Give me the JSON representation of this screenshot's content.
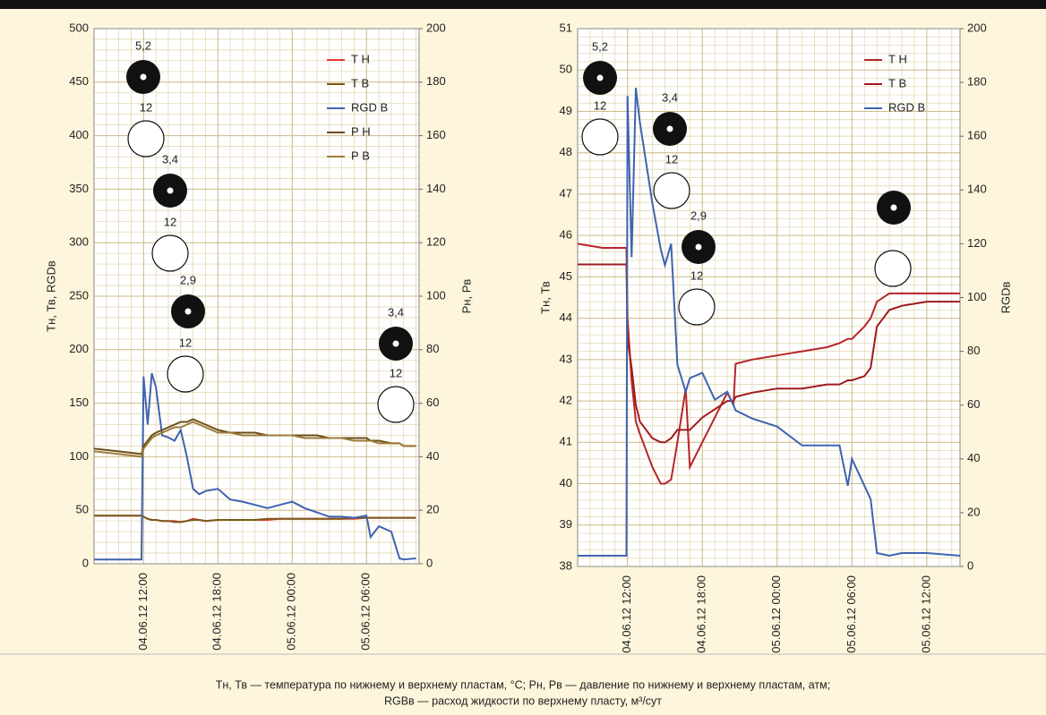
{
  "chart_data": [
    {
      "type": "line",
      "ylabel": "Тн, Тв, RGDв",
      "y2label": "Рн, Рв",
      "legend": "upper right",
      "xlim": [
        "2012-06-04T08:00",
        "2012-06-05T10:15"
      ],
      "xticks": [
        {
          "value": "2012-06-04T12:00",
          "label": "04.06.12 12:00"
        },
        {
          "value": "2012-06-04T18:00",
          "label": "04.06.12 18:00"
        },
        {
          "value": "2012-06-05T00:00",
          "label": "05.06.12 00:00"
        },
        {
          "value": "2012-06-05T06:00",
          "label": "05.06.12 06:00"
        }
      ],
      "ylim": [
        0,
        500
      ],
      "yticks": [
        0,
        50,
        100,
        150,
        200,
        250,
        300,
        350,
        400,
        450,
        500
      ],
      "y2lim": [
        0,
        200
      ],
      "y2ticks": [
        0,
        20,
        40,
        60,
        80,
        100,
        120,
        140,
        160,
        180,
        200
      ],
      "x": [
        "2012-06-04T08:00",
        "2012-06-04T10:00",
        "2012-06-04T11:50",
        "2012-06-04T12:00",
        "2012-06-04T12:20",
        "2012-06-04T12:40",
        "2012-06-04T13:00",
        "2012-06-04T13:30",
        "2012-06-04T14:00",
        "2012-06-04T14:30",
        "2012-06-04T15:00",
        "2012-06-04T15:30",
        "2012-06-04T16:00",
        "2012-06-04T16:30",
        "2012-06-04T17:00",
        "2012-06-04T18:00",
        "2012-06-04T19:00",
        "2012-06-04T20:00",
        "2012-06-04T21:00",
        "2012-06-04T22:00",
        "2012-06-04T23:00",
        "2012-06-05T00:00",
        "2012-06-05T01:00",
        "2012-06-05T02:00",
        "2012-06-05T03:00",
        "2012-06-05T04:00",
        "2012-06-05T05:00",
        "2012-06-05T06:00",
        "2012-06-05T06:20",
        "2012-06-05T07:00",
        "2012-06-05T08:00",
        "2012-06-05T08:40",
        "2012-06-05T09:00",
        "2012-06-05T10:00"
      ],
      "series": [
        {
          "name": "Т Н",
          "color": "#e8383d",
          "values": [
            45,
            45,
            45,
            44,
            42,
            41,
            41,
            40,
            40,
            40,
            39,
            40,
            42,
            41,
            40,
            41,
            41,
            41,
            41,
            41,
            42,
            42,
            42,
            42,
            42,
            42,
            42,
            43,
            43,
            43,
            43,
            43,
            43,
            43
          ]
        },
        {
          "name": "Т В",
          "color": "#7a5a1c",
          "values": [
            45,
            45,
            45,
            44,
            42,
            41,
            41,
            40,
            40,
            39,
            39,
            40,
            41,
            41,
            40,
            41,
            41,
            41,
            41,
            42,
            42,
            42,
            42,
            42,
            42,
            42,
            43,
            43,
            43,
            43,
            43,
            43,
            43,
            43
          ]
        },
        {
          "name": "RGD В",
          "color": "#3f63b0",
          "values": [
            4,
            4,
            4,
            175,
            130,
            178,
            165,
            120,
            118,
            115,
            125,
            100,
            70,
            65,
            68,
            70,
            60,
            58,
            55,
            52,
            55,
            58,
            52,
            48,
            44,
            44,
            43,
            45,
            25,
            35,
            30,
            5,
            4,
            5
          ]
        },
        {
          "name": "Р Н",
          "color": "#6b4e16",
          "axis": "y2",
          "values": [
            43,
            42,
            41,
            44,
            46,
            48,
            49,
            50,
            51,
            52,
            53,
            53,
            54,
            53,
            52,
            50,
            49,
            49,
            49,
            48,
            48,
            48,
            48,
            48,
            47,
            47,
            47,
            47,
            46,
            46,
            45,
            45,
            44,
            44
          ]
        },
        {
          "name": "Р В",
          "color": "#9c7b3a",
          "axis": "y2",
          "values": [
            42,
            41,
            40,
            43,
            45,
            47,
            48,
            49,
            50,
            51,
            51,
            52,
            53,
            52,
            51,
            49,
            49,
            48,
            48,
            48,
            48,
            48,
            47,
            47,
            47,
            47,
            46,
            46,
            46,
            45,
            45,
            45,
            44,
            44
          ]
        }
      ],
      "annotations": [
        "5,2",
        "12",
        "3,4",
        "12",
        "2,9",
        "12",
        "3,4",
        "12"
      ]
    },
    {
      "type": "line",
      "ylabel": "Тн, Тв",
      "y2label": "RGDв",
      "legend": "upper right",
      "xlim": [
        "2012-06-04T08:00",
        "2012-06-05T14:40"
      ],
      "xticks": [
        {
          "value": "2012-06-04T12:00",
          "label": "04.06.12 12:00"
        },
        {
          "value": "2012-06-04T18:00",
          "label": "04.06.12 18:00"
        },
        {
          "value": "2012-06-05T00:00",
          "label": "05.06.12 00:00"
        },
        {
          "value": "2012-06-05T06:00",
          "label": "05.06.12 06:00"
        },
        {
          "value": "2012-06-05T12:00",
          "label": "05.06.12 12:00"
        }
      ],
      "ylim": [
        38,
        51
      ],
      "yticks": [
        38,
        39,
        40,
        41,
        42,
        43,
        44,
        45,
        46,
        47,
        48,
        49,
        50,
        51
      ],
      "y2lim": [
        0,
        200
      ],
      "y2ticks": [
        0,
        20,
        40,
        60,
        80,
        100,
        120,
        140,
        160,
        180,
        200
      ],
      "x": [
        "2012-06-04T08:00",
        "2012-06-04T10:00",
        "2012-06-04T11:55",
        "2012-06-04T12:00",
        "2012-06-04T12:20",
        "2012-06-04T12:40",
        "2012-06-04T13:00",
        "2012-06-04T14:00",
        "2012-06-04T14:40",
        "2012-06-04T15:00",
        "2012-06-04T15:30",
        "2012-06-04T16:00",
        "2012-06-04T16:40",
        "2012-06-04T17:00",
        "2012-06-04T18:00",
        "2012-06-04T19:00",
        "2012-06-04T20:00",
        "2012-06-04T20:30",
        "2012-06-04T20:40",
        "2012-06-04T22:00",
        "2012-06-05T00:00",
        "2012-06-05T02:00",
        "2012-06-05T04:00",
        "2012-06-05T05:00",
        "2012-06-05T05:40",
        "2012-06-05T06:00",
        "2012-06-05T07:00",
        "2012-06-05T07:30",
        "2012-06-05T08:00",
        "2012-06-05T09:00",
        "2012-06-05T10:00",
        "2012-06-05T12:00",
        "2012-06-05T14:40"
      ],
      "series": [
        {
          "name": "Т Н",
          "color": "#b8242a",
          "values": [
            45.8,
            45.7,
            45.7,
            44.0,
            42.5,
            41.5,
            41.2,
            40.4,
            40.0,
            40.0,
            40.1,
            41.0,
            42.3,
            40.4,
            41.0,
            41.6,
            42.2,
            41.9,
            42.9,
            43.0,
            43.1,
            43.2,
            43.3,
            43.4,
            43.5,
            43.5,
            43.8,
            44.0,
            44.4,
            44.6,
            44.6,
            44.6,
            44.6
          ]
        },
        {
          "name": "Т В",
          "color": "#9e1a1e",
          "values": [
            45.3,
            45.3,
            45.3,
            43.5,
            42.8,
            41.9,
            41.5,
            41.1,
            41.0,
            41.0,
            41.1,
            41.3,
            41.3,
            41.3,
            41.6,
            41.8,
            42.0,
            42.0,
            42.1,
            42.2,
            42.3,
            42.3,
            42.4,
            42.4,
            42.5,
            42.5,
            42.6,
            42.8,
            43.8,
            44.2,
            44.3,
            44.4,
            44.4
          ]
        },
        {
          "name": "RGD В",
          "color": "#3f63b0",
          "axis": "y2",
          "values": [
            4,
            4,
            4,
            175,
            115,
            178,
            165,
            135,
            118,
            112,
            120,
            75,
            65,
            70,
            72,
            62,
            65,
            60,
            58,
            55,
            52,
            45,
            45,
            45,
            30,
            40,
            30,
            25,
            5,
            4,
            5,
            5,
            4
          ]
        }
      ],
      "annotations": [
        "5,2",
        "12",
        "3,4",
        "12",
        "2,9",
        "12"
      ]
    }
  ],
  "caption": [
    "Тн, Тв — температура по нижнему и верхнему пластам, °С; Рн, Рв — давление по нижнему и верхнему пластам, атм;",
    "RGBв — расход жидкости по верхнему пласту, м³/сут"
  ]
}
